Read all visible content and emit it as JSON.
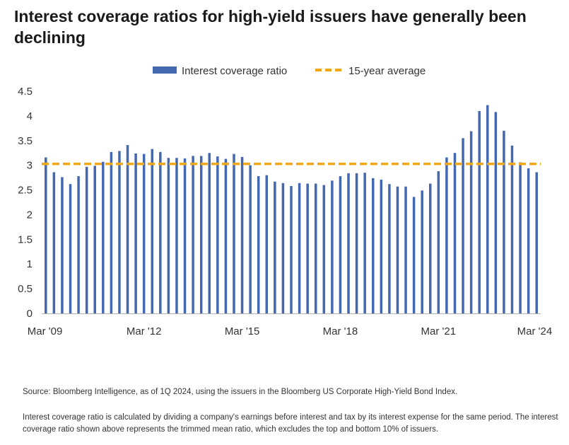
{
  "title": "Interest coverage ratios for high-yield issuers have generally been declining",
  "source": "Source: Bloomberg Intelligence, as of 1Q 2024, using the issuers in the Bloomberg US Corporate High-Yield Bond Index.",
  "note": "Interest coverage ratio is calculated by dividing a company's earnings before interest and tax by its interest expense for the same period. The interest coverage ratio shown above represents the trimmed mean ratio, which excludes the top and bottom 10% of issuers.",
  "colors": {
    "bar": "#4468b0",
    "average": "#f0a818",
    "axis": "#b0b0b0"
  },
  "chart_data": {
    "type": "bar",
    "legend": [
      "Interest coverage ratio",
      "15-year average"
    ],
    "legend_position": "top-center",
    "x_tick_labels": [
      "Mar '09",
      "Mar '12",
      "Mar '15",
      "Mar '18",
      "Mar '21",
      "Mar '24"
    ],
    "y_ticks": [
      0,
      0.5,
      1,
      1.5,
      2,
      2.5,
      3,
      3.5,
      4,
      4.5
    ],
    "y_tick_labels": [
      "0",
      "0.5",
      "1",
      "1.5",
      "2",
      "2.5",
      "3",
      "3.5",
      "4",
      "4.5"
    ],
    "ylim": [
      0,
      4.5
    ],
    "grid": false,
    "x_start": "Mar '09",
    "x_end": "Mar '24",
    "frequency": "quarterly",
    "series": [
      {
        "name": "Interest coverage ratio",
        "values": [
          3.16,
          2.86,
          2.76,
          2.62,
          2.78,
          2.97,
          2.99,
          3.07,
          3.27,
          3.29,
          3.41,
          3.24,
          3.23,
          3.33,
          3.27,
          3.15,
          3.15,
          3.14,
          3.19,
          3.19,
          3.25,
          3.18,
          3.13,
          3.23,
          3.17,
          3.0,
          2.78,
          2.8,
          2.67,
          2.64,
          2.58,
          2.64,
          2.63,
          2.63,
          2.6,
          2.69,
          2.78,
          2.84,
          2.84,
          2.85,
          2.74,
          2.71,
          2.62,
          2.57,
          2.57,
          2.36,
          2.49,
          2.63,
          2.88,
          3.16,
          3.25,
          3.55,
          3.69,
          4.1,
          4.22,
          4.08,
          3.7,
          3.4,
          3.06,
          2.94,
          2.86
        ]
      },
      {
        "name": "15-year average",
        "value": 3.03
      }
    ]
  }
}
